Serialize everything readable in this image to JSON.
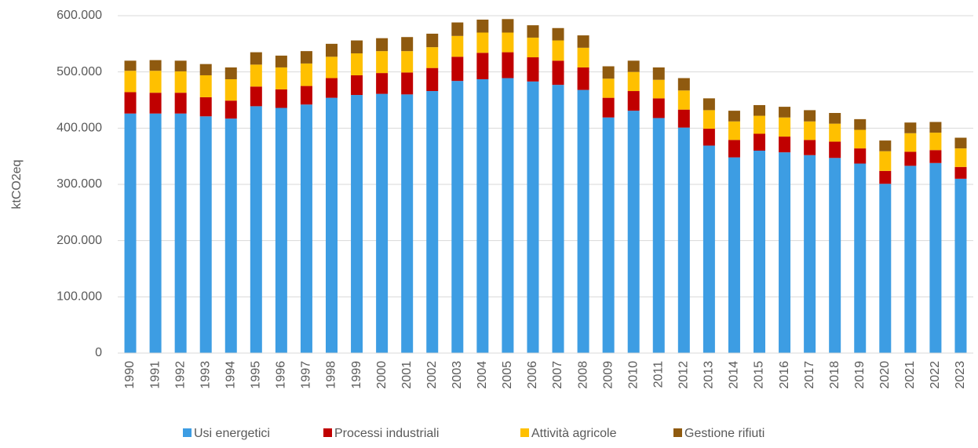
{
  "chart_data": {
    "type": "stacked_bar",
    "y_label": "ktCO2eq",
    "categories": [
      "1990",
      "1991",
      "1992",
      "1993",
      "1994",
      "1995",
      "1996",
      "1997",
      "1998",
      "1999",
      "2000",
      "2001",
      "2002",
      "2003",
      "2004",
      "2005",
      "2006",
      "2007",
      "2008",
      "2009",
      "2010",
      "2011",
      "2012",
      "2013",
      "2014",
      "2015",
      "2016",
      "2017",
      "2018",
      "2019",
      "2020",
      "2021",
      "2022",
      "2023"
    ],
    "series": [
      {
        "name": "Usi energetici",
        "color": "#3d9de3",
        "values": [
          426000,
          426000,
          426000,
          421000,
          417000,
          439000,
          436000,
          442000,
          454000,
          459000,
          461000,
          460000,
          466000,
          484000,
          487000,
          489000,
          483000,
          477000,
          468000,
          419000,
          431000,
          418000,
          401000,
          369000,
          348000,
          360000,
          357000,
          352000,
          347000,
          337000,
          301000,
          333000,
          338000,
          310000
        ]
      },
      {
        "name": "Processi industriali",
        "color": "#c00000",
        "values": [
          38000,
          37000,
          37000,
          34000,
          32000,
          35000,
          33000,
          33000,
          35000,
          35000,
          37000,
          39000,
          41000,
          43000,
          47000,
          46000,
          43000,
          43000,
          40000,
          35000,
          35000,
          35000,
          32000,
          30000,
          31000,
          30000,
          28000,
          27000,
          29000,
          27000,
          23000,
          25000,
          23000,
          21000
        ]
      },
      {
        "name": "Attività agricole",
        "color": "#ffc000",
        "values": [
          38000,
          39000,
          38000,
          39000,
          38000,
          39000,
          39000,
          40000,
          38000,
          39000,
          39000,
          38000,
          37000,
          37000,
          36000,
          35000,
          35000,
          36000,
          35000,
          34000,
          34000,
          33000,
          34000,
          33000,
          33000,
          32000,
          34000,
          33000,
          32000,
          33000,
          35000,
          33000,
          31000,
          33000
        ]
      },
      {
        "name": "Gestione rifiuti",
        "color": "#8f5a0f",
        "values": [
          18000,
          19000,
          19000,
          20000,
          21000,
          22000,
          21000,
          22000,
          23000,
          23000,
          23000,
          25000,
          24000,
          24000,
          23000,
          24000,
          22000,
          22000,
          22000,
          22000,
          20000,
          22000,
          22000,
          21000,
          19000,
          19000,
          19000,
          20000,
          19000,
          19000,
          19000,
          19000,
          19000,
          19000
        ]
      }
    ],
    "ylim": [
      0,
      600000
    ],
    "yticks": [
      0,
      {
        "value": 100000,
        "label": "100.000"
      },
      {
        "value": 200000,
        "label": "200.000"
      },
      {
        "value": 300000,
        "label": "300.000"
      },
      {
        "value": 400000,
        "label": "400.000"
      },
      {
        "value": 500000,
        "label": "500.000"
      },
      {
        "value": 600000,
        "label": "600.000"
      }
    ],
    "grid": true,
    "legend": "bottom"
  }
}
